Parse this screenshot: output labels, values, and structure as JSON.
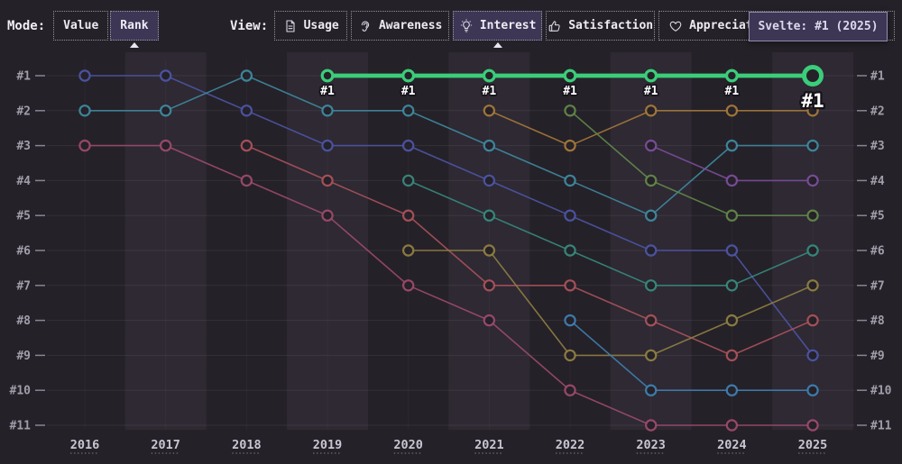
{
  "toolbar": {
    "mode": {
      "label": "Mode:",
      "options": [
        {
          "label": "Value",
          "selected": false
        },
        {
          "label": "Rank",
          "selected": true
        }
      ]
    },
    "view": {
      "label": "View:",
      "options": [
        {
          "label": "Usage",
          "icon": "document-icon",
          "selected": false
        },
        {
          "label": "Awareness",
          "icon": "ear-icon",
          "selected": false
        },
        {
          "label": "Interest",
          "icon": "lightbulb-icon",
          "selected": true
        },
        {
          "label": "Satisfaction",
          "icon": "thumbs-up-icon",
          "selected": false
        },
        {
          "label": "Appreciation",
          "icon": "heart-icon",
          "selected": false
        }
      ]
    },
    "tooltip": {
      "text": "Svelte: #1 (2025)"
    }
  },
  "chart_data": {
    "type": "line",
    "subtype": "rank-bump",
    "x": [
      2016,
      2017,
      2018,
      2019,
      2020,
      2021,
      2022,
      2023,
      2024,
      2025
    ],
    "y_axis": {
      "labels": [
        "#1",
        "#2",
        "#3",
        "#4",
        "#5",
        "#6",
        "#7",
        "#8",
        "#9",
        "#10",
        "#11"
      ],
      "min_rank": 1,
      "max_rank": 11,
      "shown_both_sides": true
    },
    "banded_years": [
      2017,
      2019,
      2021,
      2023,
      2025
    ],
    "grid": true,
    "highlight_point_label": "#1",
    "highlight_tooltip": "Svelte: #1 (2025)",
    "series": [
      {
        "id": "indigo",
        "color": "#4c55a5",
        "highlight": false,
        "ranks": [
          1,
          1,
          2,
          3,
          3,
          4,
          5,
          6,
          6,
          9
        ]
      },
      {
        "id": "teal",
        "color": "#3f89a0",
        "highlight": false,
        "ranks": [
          2,
          2,
          1,
          2,
          2,
          3,
          4,
          5,
          3,
          3
        ]
      },
      {
        "id": "maroon",
        "color": "#9c4a6e",
        "highlight": false,
        "ranks": [
          3,
          3,
          4,
          5,
          7,
          8,
          10,
          11,
          11,
          11
        ]
      },
      {
        "id": "red",
        "color": "#aa525b",
        "highlight": false,
        "ranks": [
          null,
          null,
          3,
          4,
          5,
          7,
          7,
          8,
          9,
          8
        ]
      },
      {
        "id": "teal-green",
        "color": "#378a7d",
        "highlight": false,
        "ranks": [
          null,
          null,
          null,
          null,
          4,
          5,
          6,
          7,
          7,
          6
        ]
      },
      {
        "id": "olive",
        "color": "#8f7f42",
        "highlight": false,
        "ranks": [
          null,
          null,
          null,
          null,
          6,
          6,
          9,
          9,
          8,
          7
        ]
      },
      {
        "id": "orange",
        "color": "#a5793a",
        "highlight": false,
        "ranks": [
          null,
          null,
          null,
          null,
          null,
          2,
          3,
          2,
          2,
          2
        ]
      },
      {
        "id": "sage",
        "color": "#62874a",
        "highlight": false,
        "ranks": [
          null,
          null,
          null,
          null,
          null,
          null,
          2,
          4,
          5,
          5
        ]
      },
      {
        "id": "bright-blue",
        "color": "#3f7fb0",
        "highlight": false,
        "ranks": [
          null,
          null,
          null,
          null,
          null,
          null,
          8,
          10,
          10,
          10
        ]
      },
      {
        "id": "purple",
        "color": "#7b4d9c",
        "highlight": false,
        "ranks": [
          null,
          null,
          null,
          null,
          null,
          null,
          null,
          3,
          4,
          4
        ]
      },
      {
        "id": "Svelte",
        "color": "#3bcd7a",
        "highlight": true,
        "ranks": [
          null,
          null,
          null,
          1,
          1,
          1,
          1,
          1,
          1,
          1
        ]
      }
    ],
    "colors": {
      "background": "#252128",
      "band": "rgba(128,118,160,0.10)",
      "axis_text": "#a29daa",
      "year_text": "#c9c5d2",
      "highlight": "#3bcd7a"
    }
  }
}
